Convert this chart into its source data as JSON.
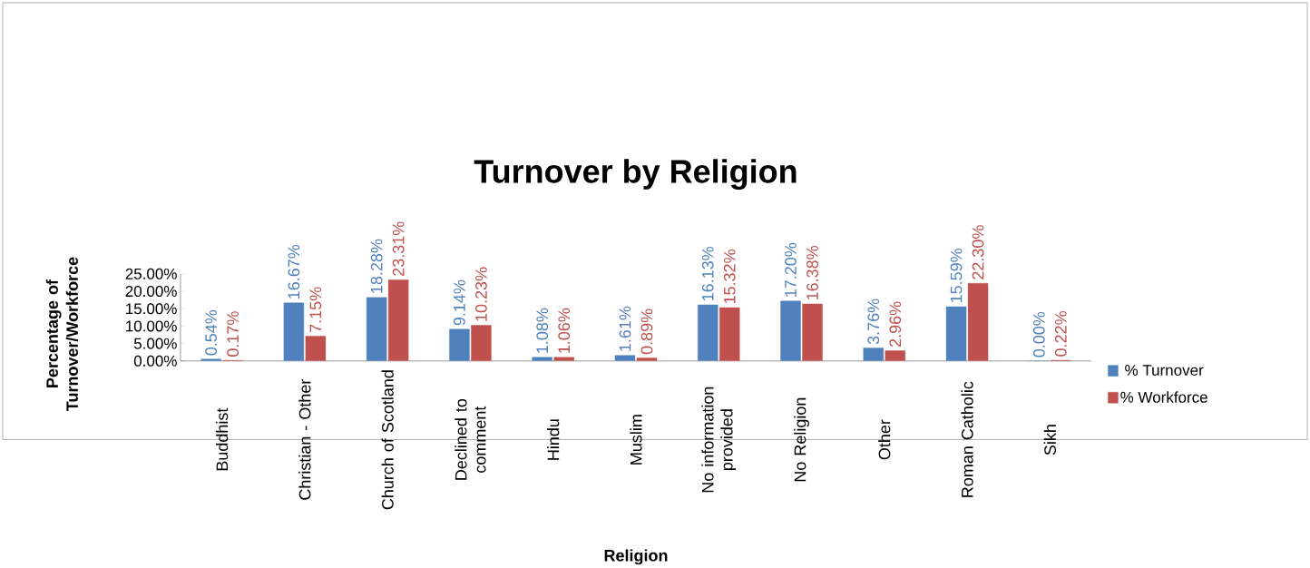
{
  "chart_data": {
    "type": "bar",
    "title": "Turnover by Religion",
    "xlabel": "Religion",
    "ylabel": "Percentage of Turnover/Workforce",
    "categories": [
      "Buddhist",
      "Christian - Other",
      "Church of Scotland",
      "Declined to comment",
      "Hindu",
      "Muslim",
      "No information provided",
      "No Religion",
      "Other",
      "Roman Catholic",
      "Sikh"
    ],
    "series": [
      {
        "name": "% Turnover",
        "color": "#4f81bd",
        "values": [
          0.54,
          16.67,
          18.28,
          9.14,
          1.08,
          1.61,
          16.13,
          17.2,
          3.76,
          15.59,
          0.0
        ],
        "value_labels": [
          "0.54%",
          "16.67%",
          "18.28%",
          "9.14%",
          "1.08%",
          "1.61%",
          "16.13%",
          "17.20%",
          "3.76%",
          "15.59%",
          "0.00%"
        ]
      },
      {
        "name": "% Workforce",
        "color": "#c0504d",
        "values": [
          0.17,
          7.15,
          23.31,
          10.23,
          1.06,
          0.89,
          15.32,
          16.38,
          2.96,
          22.3,
          0.22
        ],
        "value_labels": [
          "0.17%",
          "7.15%",
          "23.31%",
          "10.23%",
          "1.06%",
          "0.89%",
          "15.32%",
          "16.38%",
          "2.96%",
          "22.30%",
          "0.22%"
        ]
      }
    ],
    "ylim": [
      0,
      25
    ],
    "yticks": [
      {
        "value": 0,
        "label": "0.00%"
      },
      {
        "value": 5,
        "label": "5.00%"
      },
      {
        "value": 10,
        "label": "10.00%"
      },
      {
        "value": 15,
        "label": "15.00%"
      },
      {
        "value": 20,
        "label": "20.00%"
      },
      {
        "value": 25,
        "label": "25.00%"
      }
    ],
    "grid": false,
    "legend": "right"
  }
}
